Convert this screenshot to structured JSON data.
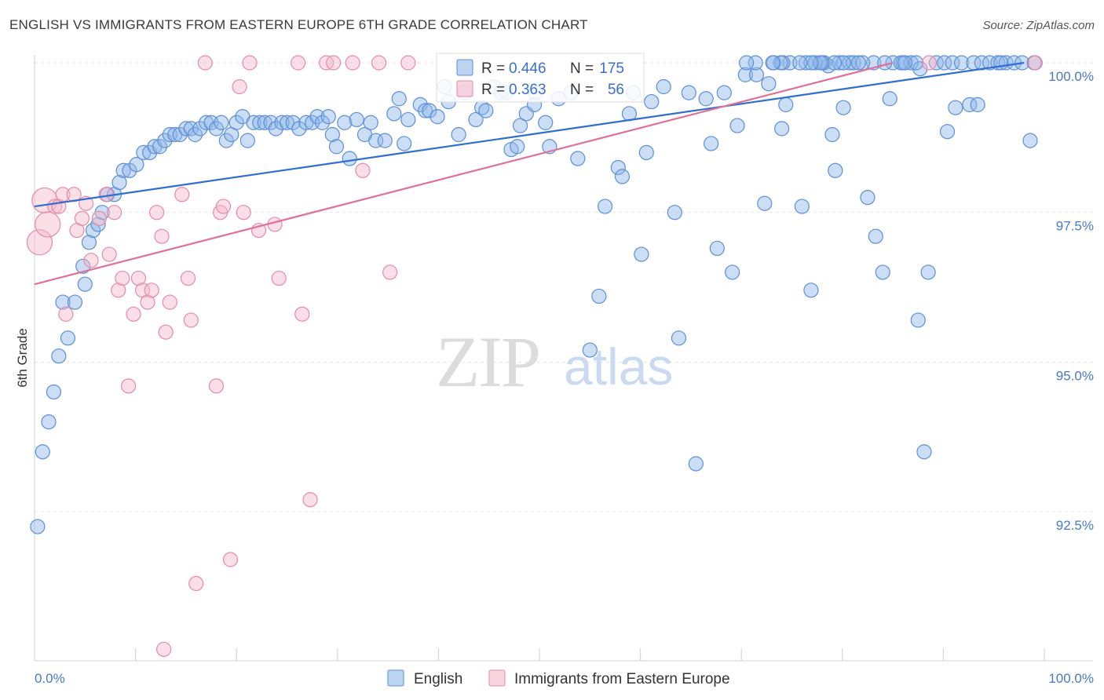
{
  "title": "ENGLISH VS IMMIGRANTS FROM EASTERN EUROPE 6TH GRADE CORRELATION CHART",
  "source": "Source: ZipAtlas.com",
  "chart_data": {
    "type": "scatter",
    "title": "ENGLISH VS IMMIGRANTS FROM EASTERN EUROPE 6TH GRADE CORRELATION CHART",
    "xlabel": "",
    "ylabel": "6th Grade",
    "xlim": [
      0,
      100
    ],
    "ylim": [
      90.2,
      100.4
    ],
    "x_tick_labels": [
      "0.0%",
      "100.0%"
    ],
    "y_ticks": [
      92.5,
      95.0,
      97.5,
      100.0
    ],
    "y_tick_labels": [
      "92.5%",
      "95.0%",
      "97.5%",
      "100.0%"
    ],
    "grid": true,
    "legend_position": "bottom-center",
    "watermark": {
      "part1": "ZIP",
      "part2": "atlas"
    },
    "stats": [
      {
        "r_label": "R =",
        "r_value": "0.446",
        "n_label": "N =",
        "n_value": "175"
      },
      {
        "r_label": "R =",
        "r_value": "0.363",
        "n_label": "N =",
        "n_value": "56"
      }
    ],
    "series": [
      {
        "name": "English",
        "color": "#8fb6e8",
        "stroke": "#5b8fd6",
        "trend_color": "#2e6fcf",
        "trend": {
          "x": [
            0,
            98
          ],
          "y": [
            97.6,
            100.0
          ]
        },
        "points": [
          [
            0.3,
            92.25
          ],
          [
            0.8,
            93.5
          ],
          [
            1.4,
            94.0
          ],
          [
            1.9,
            94.5
          ],
          [
            2.4,
            95.1
          ],
          [
            3.3,
            95.4
          ],
          [
            2.8,
            96.0
          ],
          [
            4.0,
            96.0
          ],
          [
            4.8,
            96.6
          ],
          [
            5.0,
            96.3
          ],
          [
            5.4,
            97.0
          ],
          [
            5.8,
            97.2
          ],
          [
            6.3,
            97.3
          ],
          [
            6.7,
            97.5
          ],
          [
            7.2,
            97.8
          ],
          [
            7.9,
            97.8
          ],
          [
            8.4,
            98.0
          ],
          [
            8.8,
            98.2
          ],
          [
            9.4,
            98.2
          ],
          [
            10.1,
            98.3
          ],
          [
            10.8,
            98.5
          ],
          [
            11.4,
            98.5
          ],
          [
            11.9,
            98.6
          ],
          [
            12.4,
            98.6
          ],
          [
            12.9,
            98.7
          ],
          [
            13.4,
            98.8
          ],
          [
            13.9,
            98.8
          ],
          [
            14.4,
            98.8
          ],
          [
            15.0,
            98.9
          ],
          [
            15.5,
            98.9
          ],
          [
            15.9,
            98.8
          ],
          [
            16.4,
            98.9
          ],
          [
            17.0,
            99.0
          ],
          [
            17.5,
            99.0
          ],
          [
            18.0,
            98.9
          ],
          [
            18.5,
            99.0
          ],
          [
            19.0,
            98.7
          ],
          [
            19.5,
            98.8
          ],
          [
            20.0,
            99.0
          ],
          [
            20.6,
            99.1
          ],
          [
            21.1,
            98.7
          ],
          [
            21.7,
            99.0
          ],
          [
            22.3,
            99.0
          ],
          [
            22.8,
            99.0
          ],
          [
            23.4,
            99.0
          ],
          [
            23.9,
            98.9
          ],
          [
            24.5,
            99.0
          ],
          [
            25.0,
            99.0
          ],
          [
            25.6,
            99.0
          ],
          [
            26.2,
            98.9
          ],
          [
            26.9,
            99.0
          ],
          [
            27.5,
            99.0
          ],
          [
            28.0,
            99.1
          ],
          [
            28.5,
            99.0
          ],
          [
            29.1,
            99.1
          ],
          [
            29.5,
            98.8
          ],
          [
            29.9,
            98.6
          ],
          [
            30.7,
            99.0
          ],
          [
            31.2,
            98.4
          ],
          [
            31.9,
            99.05
          ],
          [
            32.7,
            98.8
          ],
          [
            33.3,
            99.0
          ],
          [
            33.8,
            98.7
          ],
          [
            34.7,
            98.7
          ],
          [
            35.6,
            99.15
          ],
          [
            36.1,
            99.4
          ],
          [
            36.6,
            98.65
          ],
          [
            37.0,
            99.05
          ],
          [
            38.2,
            99.3
          ],
          [
            38.7,
            99.2
          ],
          [
            39.1,
            99.2
          ],
          [
            39.9,
            99.1
          ],
          [
            40.6,
            99.6
          ],
          [
            41.0,
            99.35
          ],
          [
            42.0,
            98.8
          ],
          [
            42.6,
            99.5
          ],
          [
            43.7,
            99.05
          ],
          [
            44.3,
            99.25
          ],
          [
            44.7,
            99.2
          ],
          [
            45.5,
            99.6
          ],
          [
            46.2,
            99.5
          ],
          [
            46.7,
            99.5
          ],
          [
            47.2,
            98.55
          ],
          [
            47.8,
            98.6
          ],
          [
            48.1,
            98.95
          ],
          [
            48.7,
            99.15
          ],
          [
            49.5,
            99.3
          ],
          [
            49.6,
            99.5
          ],
          [
            50.6,
            99.0
          ],
          [
            51.0,
            98.6
          ],
          [
            51.9,
            99.4
          ],
          [
            53.1,
            99.5
          ],
          [
            53.8,
            98.4
          ],
          [
            55.0,
            95.2
          ],
          [
            55.9,
            96.1
          ],
          [
            56.5,
            97.6
          ],
          [
            57.8,
            98.25
          ],
          [
            58.2,
            98.1
          ],
          [
            58.9,
            99.15
          ],
          [
            59.3,
            99.5
          ],
          [
            60.1,
            96.8
          ],
          [
            60.6,
            98.5
          ],
          [
            61.1,
            99.35
          ],
          [
            62.3,
            99.6
          ],
          [
            63.4,
            97.5
          ],
          [
            63.8,
            95.4
          ],
          [
            64.8,
            99.5
          ],
          [
            65.5,
            93.3
          ],
          [
            66.5,
            99.4
          ],
          [
            67.0,
            98.65
          ],
          [
            67.6,
            96.9
          ],
          [
            68.3,
            99.5
          ],
          [
            69.1,
            96.5
          ],
          [
            69.6,
            98.95
          ],
          [
            70.4,
            99.8
          ],
          [
            71.5,
            99.8
          ],
          [
            72.3,
            97.65
          ],
          [
            72.7,
            99.65
          ],
          [
            73.2,
            100.0
          ],
          [
            74.4,
            99.3
          ],
          [
            74.8,
            100.0
          ],
          [
            76.0,
            97.6
          ],
          [
            76.4,
            100.0
          ],
          [
            77.3,
            100.0
          ],
          [
            78.2,
            100.0
          ],
          [
            78.6,
            99.95
          ],
          [
            79.0,
            98.8
          ],
          [
            79.3,
            98.2
          ],
          [
            79.7,
            100.0
          ],
          [
            80.7,
            100.0
          ],
          [
            81.1,
            100.0
          ],
          [
            82.5,
            97.75
          ],
          [
            83.1,
            100.0
          ],
          [
            84.0,
            96.5
          ],
          [
            84.7,
            99.4
          ],
          [
            85.0,
            100.0
          ],
          [
            86.0,
            100.0
          ],
          [
            86.8,
            100.0
          ],
          [
            87.7,
            99.9
          ],
          [
            88.5,
            96.5
          ],
          [
            89.3,
            100.0
          ],
          [
            90.1,
            100.0
          ],
          [
            90.9,
            100.0
          ],
          [
            91.8,
            100.0
          ],
          [
            92.6,
            99.3
          ],
          [
            93.0,
            100.0
          ],
          [
            93.8,
            100.0
          ],
          [
            94.6,
            100.0
          ],
          [
            95.4,
            100.0
          ],
          [
            96.2,
            100.0
          ],
          [
            97.0,
            100.0
          ],
          [
            97.8,
            100.0
          ],
          [
            98.6,
            98.7
          ],
          [
            99.0,
            100.0
          ],
          [
            83.3,
            97.1
          ],
          [
            80.1,
            99.25
          ],
          [
            76.9,
            96.2
          ],
          [
            74.0,
            98.9
          ],
          [
            87.5,
            95.7
          ],
          [
            88.1,
            93.5
          ],
          [
            91.2,
            99.25
          ],
          [
            93.4,
            99.3
          ],
          [
            95.7,
            100.0
          ],
          [
            90.4,
            98.85
          ],
          [
            85.8,
            100.0
          ],
          [
            84.2,
            100.0
          ],
          [
            82.0,
            100.0
          ],
          [
            81.6,
            100.0
          ],
          [
            80.1,
            100.0
          ],
          [
            79.2,
            100.0
          ],
          [
            78.0,
            100.0
          ],
          [
            77.8,
            100.0
          ],
          [
            76.9,
            100.0
          ],
          [
            75.8,
            100.0
          ],
          [
            74.1,
            100.0
          ],
          [
            73.9,
            100.0
          ],
          [
            73.1,
            100.0
          ],
          [
            71.4,
            100.0
          ],
          [
            70.5,
            100.0
          ],
          [
            87.3,
            100.0
          ],
          [
            86.2,
            100.0
          ]
        ]
      },
      {
        "name": "Immigrants from Eastern Europe",
        "color": "#f4b8c9",
        "stroke": "#e58aa8",
        "trend_color": "#e0709a",
        "trend": {
          "x": [
            0,
            85
          ],
          "y": [
            96.3,
            100.0
          ]
        },
        "points": [
          [
            0.5,
            97.0
          ],
          [
            1.0,
            97.7
          ],
          [
            1.3,
            97.3
          ],
          [
            2.0,
            97.6
          ],
          [
            2.4,
            97.6
          ],
          [
            2.8,
            97.8
          ],
          [
            3.1,
            95.8
          ],
          [
            3.9,
            97.8
          ],
          [
            4.2,
            97.2
          ],
          [
            4.7,
            97.4
          ],
          [
            5.1,
            97.65
          ],
          [
            5.6,
            96.7
          ],
          [
            6.4,
            97.4
          ],
          [
            7.1,
            97.8
          ],
          [
            7.4,
            96.8
          ],
          [
            7.9,
            97.5
          ],
          [
            8.3,
            96.2
          ],
          [
            8.7,
            96.4
          ],
          [
            9.3,
            94.6
          ],
          [
            9.8,
            95.8
          ],
          [
            10.3,
            96.4
          ],
          [
            10.7,
            96.2
          ],
          [
            11.2,
            96.0
          ],
          [
            11.6,
            96.2
          ],
          [
            12.1,
            97.5
          ],
          [
            12.6,
            97.1
          ],
          [
            13.0,
            95.5
          ],
          [
            13.4,
            96.0
          ],
          [
            14.6,
            97.8
          ],
          [
            15.2,
            96.4
          ],
          [
            15.5,
            95.7
          ],
          [
            16.0,
            91.3
          ],
          [
            18.0,
            94.6
          ],
          [
            18.4,
            97.5
          ],
          [
            18.7,
            97.6
          ],
          [
            19.4,
            91.7
          ],
          [
            20.3,
            99.6
          ],
          [
            20.7,
            97.5
          ],
          [
            21.3,
            100.0
          ],
          [
            22.2,
            97.2
          ],
          [
            23.8,
            97.3
          ],
          [
            24.2,
            96.4
          ],
          [
            26.1,
            100.0
          ],
          [
            26.5,
            95.8
          ],
          [
            27.3,
            92.7
          ],
          [
            28.9,
            100.0
          ],
          [
            29.6,
            100.0
          ],
          [
            31.5,
            100.0
          ],
          [
            32.5,
            98.2
          ],
          [
            34.1,
            100.0
          ],
          [
            35.2,
            96.5
          ],
          [
            37.0,
            100.0
          ],
          [
            16.9,
            100.0
          ],
          [
            12.8,
            90.2
          ],
          [
            88.6,
            100.0
          ],
          [
            99.1,
            100.0
          ]
        ]
      }
    ]
  }
}
